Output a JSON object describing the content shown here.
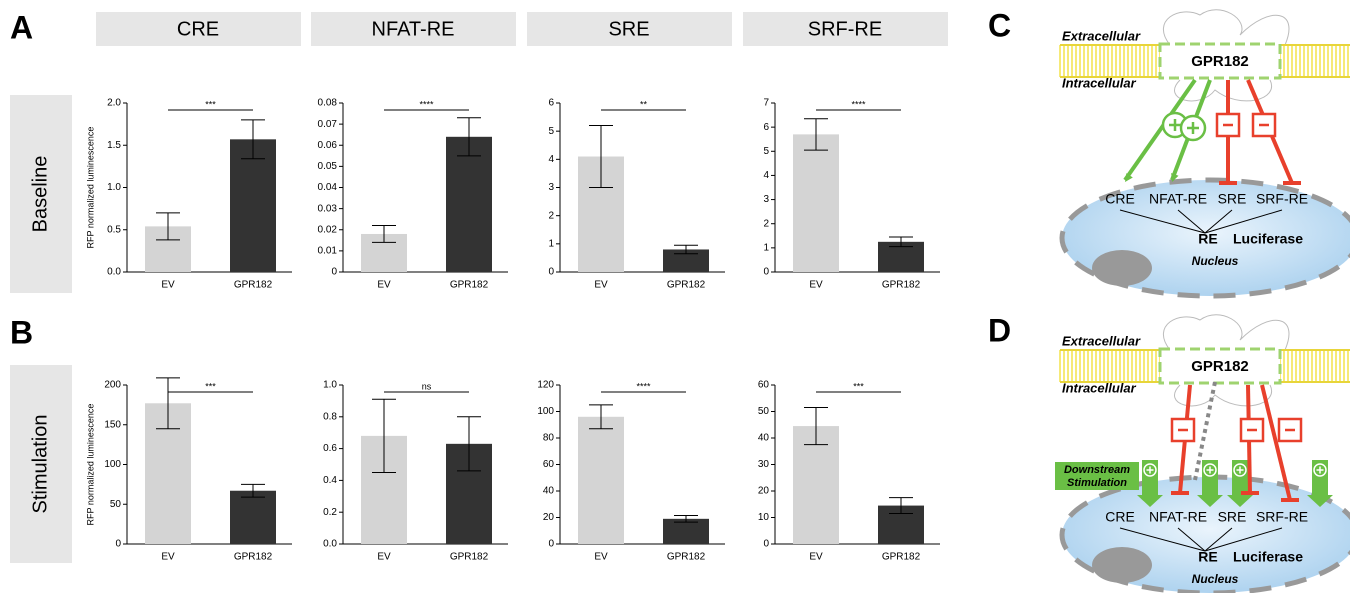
{
  "panels": [
    "A",
    "B"
  ],
  "columns": [
    "CRE",
    "NFAT-RE",
    "SRE",
    "SRF-RE"
  ],
  "rows": [
    "Baseline",
    "Stimulation"
  ],
  "chart_data": [
    {
      "type": "bar",
      "categories": [
        "EV",
        "GPR182"
      ],
      "values": [
        0.54,
        1.57
      ],
      "errors": [
        0.16,
        0.23
      ],
      "colors": [
        "#d4d4d4",
        "#333333"
      ],
      "ylabel": "RFP normalized luminescence",
      "ylim": [
        0,
        2
      ],
      "yticks": [
        {
          "value": 0,
          "label": "0.0"
        },
        0.5,
        {
          "value": 1,
          "label": "1.0"
        },
        1.5,
        {
          "value": 2,
          "label": "2.0"
        }
      ],
      "significance": "***"
    },
    {
      "type": "bar",
      "categories": [
        "EV",
        "GPR182"
      ],
      "values": [
        0.018,
        0.064
      ],
      "errors": [
        0.004,
        0.009
      ],
      "colors": [
        "#d4d4d4",
        "#333333"
      ],
      "ylim": [
        0,
        0.08
      ],
      "yticks": [
        0,
        0.01,
        0.02,
        0.03,
        0.04,
        0.05,
        0.06,
        0.07,
        0.08
      ],
      "significance": "****"
    },
    {
      "type": "bar",
      "categories": [
        "EV",
        "GPR182"
      ],
      "values": [
        4.1,
        0.8
      ],
      "errors": [
        1.1,
        0.15
      ],
      "colors": [
        "#d4d4d4",
        "#333333"
      ],
      "ylim": [
        0,
        6
      ],
      "yticks": [
        0,
        1,
        2,
        3,
        4,
        5,
        6
      ],
      "significance": "**"
    },
    {
      "type": "bar",
      "categories": [
        "EV",
        "GPR182"
      ],
      "values": [
        5.7,
        1.25
      ],
      "errors": [
        0.65,
        0.2
      ],
      "colors": [
        "#d4d4d4",
        "#333333"
      ],
      "ylim": [
        0,
        7
      ],
      "yticks": [
        0,
        1,
        2,
        3,
        4,
        5,
        6,
        7
      ],
      "significance": "****"
    },
    {
      "type": "bar",
      "categories": [
        "EV",
        "GPR182"
      ],
      "values": [
        177,
        67
      ],
      "errors": [
        32,
        8
      ],
      "colors": [
        "#d4d4d4",
        "#333333"
      ],
      "ylabel": "RFP normalized luminescence",
      "ylim": [
        0,
        200
      ],
      "yticks": [
        0,
        50,
        100,
        150,
        200
      ],
      "significance": "***"
    },
    {
      "type": "bar",
      "categories": [
        "EV",
        "GPR182"
      ],
      "values": [
        0.68,
        0.63
      ],
      "errors": [
        0.23,
        0.17
      ],
      "colors": [
        "#d4d4d4",
        "#333333"
      ],
      "ylim": [
        0,
        1
      ],
      "yticks": [
        {
          "value": 0,
          "label": "0.0"
        },
        0.2,
        0.4,
        0.6,
        0.8,
        {
          "value": 1,
          "label": "1.0"
        }
      ],
      "significance": "ns"
    },
    {
      "type": "bar",
      "categories": [
        "EV",
        "GPR182"
      ],
      "values": [
        96,
        19
      ],
      "errors": [
        9,
        2.5
      ],
      "colors": [
        "#d4d4d4",
        "#333333"
      ],
      "ylim": [
        0,
        120
      ],
      "yticks": [
        0,
        20,
        40,
        60,
        80,
        100,
        120
      ],
      "significance": "****"
    },
    {
      "type": "bar",
      "categories": [
        "EV",
        "GPR182"
      ],
      "values": [
        44.5,
        14.5
      ],
      "errors": [
        7,
        3
      ],
      "colors": [
        "#d4d4d4",
        "#333333"
      ],
      "ylim": [
        0,
        60
      ],
      "yticks": [
        0,
        10,
        20,
        30,
        40,
        50,
        60
      ],
      "significance": "***"
    }
  ],
  "diagrams": [
    {
      "label": "C",
      "extracellular": "Extracellular",
      "intracellular": "Intracellular",
      "receptor": "GPR182",
      "elements": [
        "CRE",
        "NFAT-RE",
        "SRE",
        "SRF-RE"
      ],
      "reporter": [
        "RE",
        "Luciferase"
      ],
      "nucleus": "Nucleus"
    },
    {
      "label": "D",
      "extracellular": "Extracellular",
      "intracellular": "Intracellular",
      "receptor": "GPR182",
      "elements": [
        "CRE",
        "NFAT-RE",
        "SRE",
        "SRF-RE"
      ],
      "reporter": [
        "RE",
        "Luciferase"
      ],
      "nucleus": "Nucleus",
      "stimulation": [
        "Downstream",
        "Stimulation"
      ]
    }
  ]
}
